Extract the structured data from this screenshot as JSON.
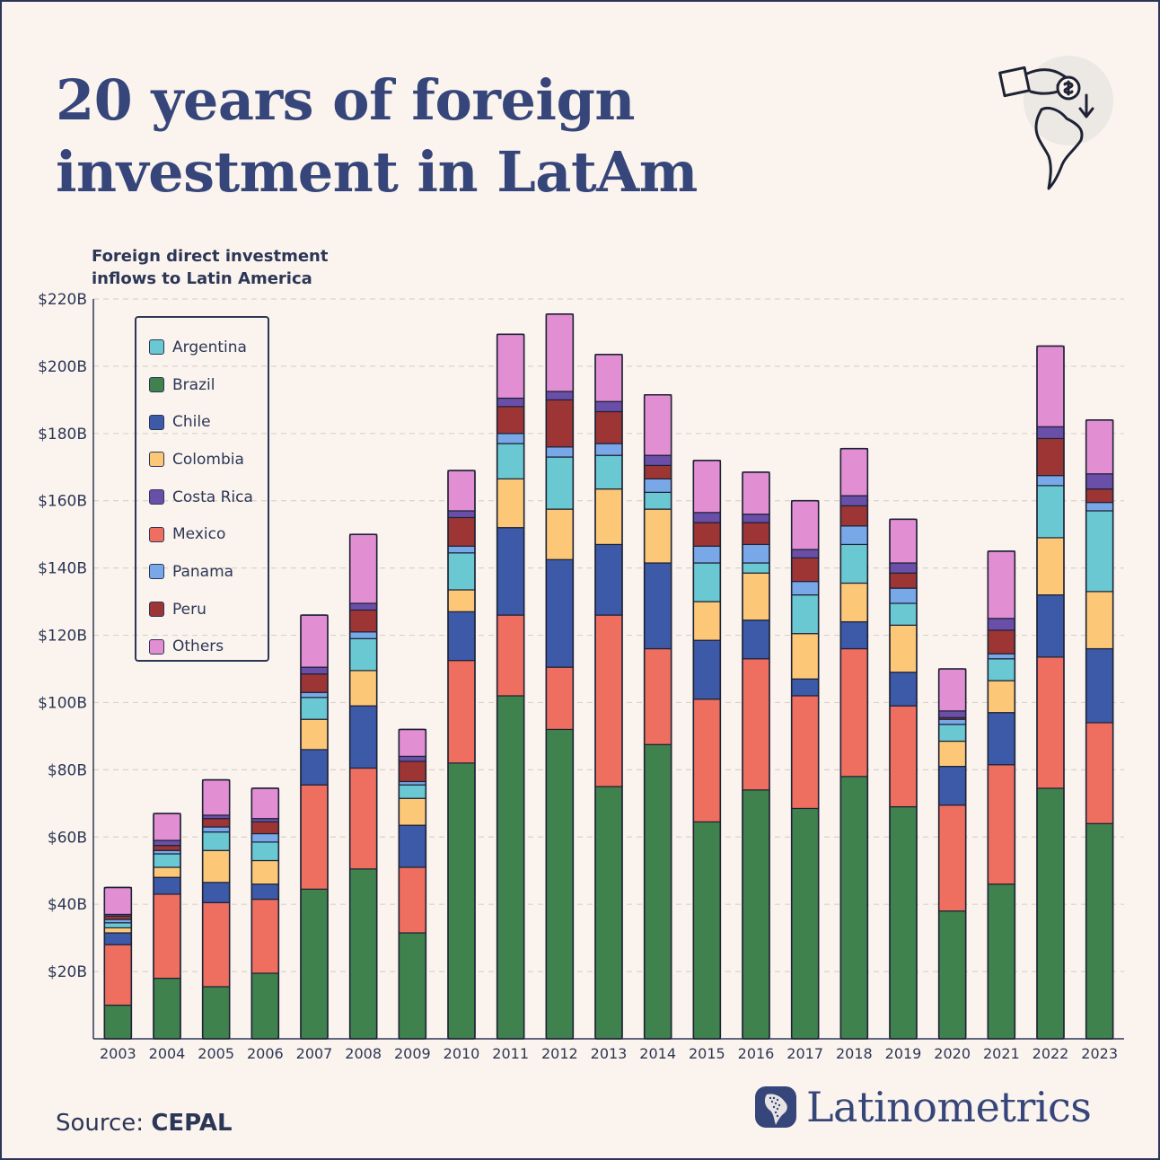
{
  "header": {
    "title_line1": "20 years of foreign",
    "title_line2": "investment in LatAm"
  },
  "chart_data": {
    "type": "bar",
    "stacked": true,
    "subtitle_line1": "Foreign direct investment",
    "subtitle_line2": "inflows to Latin America",
    "categories": [
      "2003",
      "2004",
      "2005",
      "2006",
      "2007",
      "2008",
      "2009",
      "2010",
      "2011",
      "2012",
      "2013",
      "2014",
      "2015",
      "2016",
      "2017",
      "2018",
      "2019",
      "2020",
      "2021",
      "2022",
      "2023"
    ],
    "ylim": [
      0,
      220
    ],
    "yticks": [
      20,
      40,
      60,
      80,
      100,
      120,
      140,
      160,
      180,
      200,
      220
    ],
    "ytick_labels": [
      "$20B",
      "$40B",
      "$60B",
      "$80B",
      "$100B",
      "$120B",
      "$140B",
      "$160B",
      "$180B",
      "$200B",
      "$220B"
    ],
    "grid": "horizontal dashed",
    "legend_position": "top-left",
    "series": [
      {
        "name": "Brazil",
        "color": "#3f824e",
        "values": [
          10,
          18,
          15.5,
          19.5,
          44.5,
          50.5,
          31.5,
          82,
          102,
          92,
          75,
          87.5,
          64.5,
          74,
          68.5,
          78,
          69,
          38,
          46,
          74.5,
          64
        ]
      },
      {
        "name": "Mexico",
        "color": "#ee6f60",
        "values": [
          18,
          25,
          25,
          22,
          31,
          30,
          19.5,
          30.5,
          24,
          18.5,
          51,
          28.5,
          36.5,
          39,
          33.5,
          38,
          30,
          31.5,
          35.5,
          39,
          30
        ]
      },
      {
        "name": "Chile",
        "color": "#3c5aa8",
        "values": [
          3.5,
          5,
          6,
          4.5,
          10.5,
          18.5,
          12.5,
          14.5,
          26,
          32,
          21,
          25.5,
          17.5,
          11.5,
          5,
          8,
          10,
          11.5,
          15.5,
          18.5,
          22
        ]
      },
      {
        "name": "Colombia",
        "color": "#fcc878",
        "values": [
          1.5,
          3,
          9.5,
          7,
          9,
          10.5,
          8,
          6.5,
          14.5,
          15,
          16.5,
          16,
          11.5,
          14,
          13.5,
          11.5,
          14,
          7.5,
          9.5,
          17,
          17
        ]
      },
      {
        "name": "Argentina",
        "color": "#6ac8d2",
        "values": [
          1.5,
          4,
          5.5,
          5.5,
          6.5,
          9.5,
          4,
          11,
          10.5,
          15.5,
          10,
          5,
          11.5,
          3,
          11.5,
          11.5,
          6.5,
          5,
          6.5,
          15.5,
          24
        ]
      },
      {
        "name": "Panama",
        "color": "#79a8e8",
        "values": [
          1,
          1,
          1.5,
          2.5,
          1.5,
          2,
          1,
          2,
          3,
          3,
          3.5,
          4,
          5,
          5.5,
          4,
          5.5,
          4.5,
          1.5,
          1.5,
          3,
          2.5
        ]
      },
      {
        "name": "Peru",
        "color": "#9d3535",
        "values": [
          1,
          1.5,
          2.5,
          3.5,
          5.5,
          6.5,
          6,
          8.5,
          8,
          14,
          9.5,
          4,
          7,
          6.5,
          7,
          6,
          4.5,
          0.5,
          7,
          11,
          4
        ]
      },
      {
        "name": "Costa Rica",
        "color": "#6a4fa8",
        "values": [
          0.5,
          1.5,
          1,
          1,
          2,
          2,
          1.5,
          2,
          2.5,
          2.5,
          3,
          3,
          3,
          2.5,
          2.5,
          3,
          3,
          2,
          3.5,
          3.5,
          4.5
        ]
      },
      {
        "name": "Others",
        "color": "#e28ed2",
        "values": [
          8,
          8,
          10.5,
          9,
          15.5,
          20.5,
          8,
          12,
          19,
          23,
          14,
          18,
          15.5,
          12.5,
          14.5,
          14,
          13,
          12.5,
          20,
          24,
          16
        ]
      }
    ],
    "legend_order": [
      "Argentina",
      "Brazil",
      "Chile",
      "Colombia",
      "Costa Rica",
      "Mexico",
      "Panama",
      "Peru",
      "Others"
    ]
  },
  "footer": {
    "source_prefix": "Source: ",
    "source_name": "CEPAL",
    "brand": "Latinometrics"
  },
  "icons": {
    "top_right": "hand-coin-map-icon",
    "brand_logo": "latam-map-logo-icon"
  }
}
